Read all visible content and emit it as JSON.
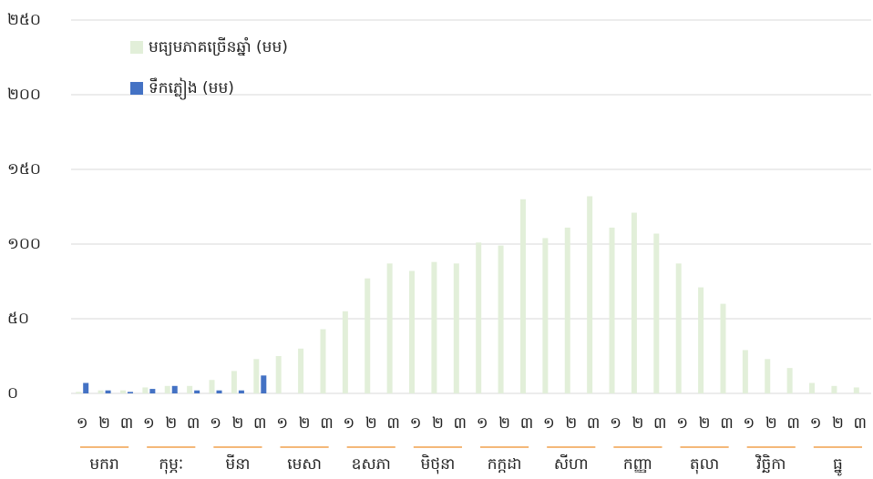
{
  "chart_data": {
    "type": "bar",
    "categories": [
      "១",
      "២",
      "៣",
      "១",
      "២",
      "៣",
      "១",
      "២",
      "៣",
      "១",
      "២",
      "៣",
      "១",
      "២",
      "៣",
      "១",
      "២",
      "៣",
      "១",
      "២",
      "៣",
      "១",
      "២",
      "៣",
      "១",
      "២",
      "៣",
      "១",
      "២",
      "៣",
      "១",
      "២",
      "៣",
      "១",
      "២",
      "៣"
    ],
    "groups": [
      "មករា",
      "កុម្ភៈ",
      "មីនា",
      "មេសា",
      "ឧសភា",
      "មិថុនា",
      "កក្កដា",
      "សីហា",
      "កញ្ញា",
      "តុលា",
      "វិច្ឆិកា",
      "ធ្នូ"
    ],
    "series": [
      {
        "name": "មធ្យមភាគច្រើនឆ្នាំ (មម)",
        "color": "#e2efd9",
        "values": [
          1,
          2,
          2,
          4,
          5,
          5,
          9,
          15,
          23,
          25,
          30,
          43,
          55,
          77,
          87,
          82,
          88,
          87,
          101,
          99,
          130,
          104,
          111,
          132,
          111,
          121,
          107,
          87,
          71,
          60,
          29,
          23,
          17,
          7,
          5,
          4
        ]
      },
      {
        "name": "ទឹកភ្លៀង (មម)",
        "color": "#4472c4",
        "values": [
          7,
          2,
          1,
          3,
          5,
          2,
          2,
          2,
          12,
          null,
          null,
          null,
          null,
          null,
          null,
          null,
          null,
          null,
          null,
          null,
          null,
          null,
          null,
          null,
          null,
          null,
          null,
          null,
          null,
          null,
          null,
          null,
          null,
          null,
          null,
          null
        ]
      }
    ],
    "ylim": [
      0,
      250
    ],
    "yticks": [
      {
        "value": 0,
        "label": "០"
      },
      {
        "value": 50,
        "label": "៥០"
      },
      {
        "value": 100,
        "label": "១០០"
      },
      {
        "value": 150,
        "label": "១៥០"
      },
      {
        "value": 200,
        "label": "២០០"
      },
      {
        "value": 250,
        "label": "២៥០"
      }
    ],
    "grid": true,
    "legend": "top-left",
    "group_line_color": "#f0a04b"
  }
}
